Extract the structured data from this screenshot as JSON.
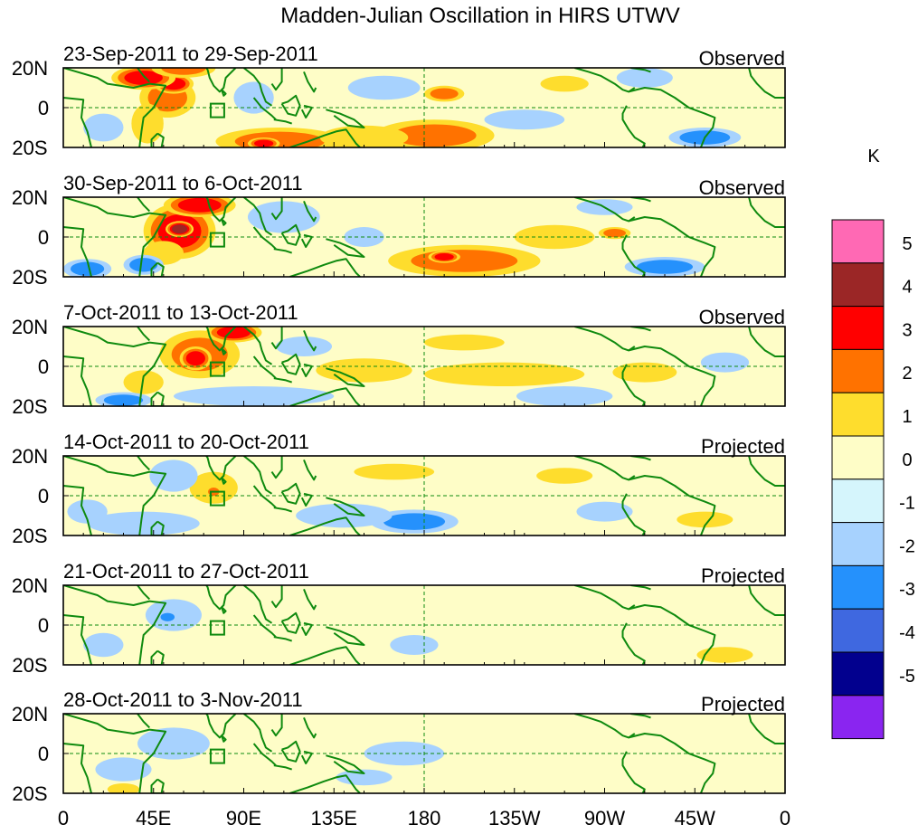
{
  "chart_data": {
    "type": "heatmap",
    "title": "Madden-Julian Oscillation in HIRS UTWV",
    "units": "K",
    "xlabel": "",
    "ylabel": "",
    "x_ticks": [
      "0",
      "45E",
      "90E",
      "135E",
      "180",
      "135W",
      "90W",
      "45W",
      "0"
    ],
    "x_range_deg": [
      0,
      360
    ],
    "y_ticks": [
      "20N",
      "0",
      "20S"
    ],
    "y_range_deg": [
      -20,
      20
    ],
    "colorbar": {
      "labels": [
        "5",
        "4",
        "3",
        "2",
        "1",
        "0",
        "-1",
        "-2",
        "-3",
        "-4",
        "-5"
      ],
      "colors": [
        "#ff69b4",
        "#9b2626",
        "#ff0000",
        "#ff7200",
        "#fedd2d",
        "#fefdc7",
        "#d5f5fc",
        "#a7d2fe",
        "#2591fc",
        "#3f68e0",
        "#02008e",
        "#8a25f0"
      ]
    },
    "panels": [
      {
        "period": "23-Sep-2011 to 29-Sep-2011",
        "status": "Observed",
        "blobs": [
          {
            "lon": 52,
            "lat": 5,
            "rx": 14,
            "ry": 10,
            "v": 2.6
          },
          {
            "lon": 55,
            "lat": 12,
            "rx": 10,
            "ry": 5,
            "v": 3.2
          },
          {
            "lon": 40,
            "lat": 15,
            "rx": 16,
            "ry": 6,
            "v": 3.0
          },
          {
            "lon": 60,
            "lat": 20,
            "rx": 16,
            "ry": 5,
            "v": 2.2
          },
          {
            "lon": 42,
            "lat": -8,
            "rx": 8,
            "ry": 10,
            "v": 1.4
          },
          {
            "lon": 108,
            "lat": -17,
            "rx": 32,
            "ry": 7,
            "v": 2.4
          },
          {
            "lon": 100,
            "lat": -18,
            "rx": 8,
            "ry": 3,
            "v": 3.3
          },
          {
            "lon": 185,
            "lat": -14,
            "rx": 30,
            "ry": 8,
            "v": 2.2
          },
          {
            "lon": 150,
            "lat": -15,
            "rx": 22,
            "ry": 6,
            "v": 1.6
          },
          {
            "lon": 190,
            "lat": 7,
            "rx": 10,
            "ry": 4,
            "v": 2.0
          },
          {
            "lon": 250,
            "lat": 12,
            "rx": 12,
            "ry": 4,
            "v": 1.4
          },
          {
            "lon": 320,
            "lat": -15,
            "rx": 18,
            "ry": 5,
            "v": -2.6
          },
          {
            "lon": 20,
            "lat": -10,
            "rx": 10,
            "ry": 7,
            "v": -1.5
          },
          {
            "lon": 95,
            "lat": 5,
            "rx": 10,
            "ry": 8,
            "v": -1.3
          },
          {
            "lon": 160,
            "lat": 10,
            "rx": 18,
            "ry": 6,
            "v": -1.2
          },
          {
            "lon": 230,
            "lat": -6,
            "rx": 20,
            "ry": 5,
            "v": -1.2
          },
          {
            "lon": 290,
            "lat": 15,
            "rx": 14,
            "ry": 5,
            "v": -1.1
          }
        ]
      },
      {
        "period": "30-Sep-2011 to 6-Oct-2011",
        "status": "Observed",
        "blobs": [
          {
            "lon": 58,
            "lat": 3,
            "rx": 18,
            "ry": 14,
            "v": 3.2
          },
          {
            "lon": 58,
            "lat": 4,
            "rx": 7,
            "ry": 4,
            "v": 4.3
          },
          {
            "lon": 68,
            "lat": 16,
            "rx": 18,
            "ry": 6,
            "v": 3.4
          },
          {
            "lon": 50,
            "lat": -8,
            "rx": 10,
            "ry": 6,
            "v": 1.8
          },
          {
            "lon": 200,
            "lat": -12,
            "rx": 38,
            "ry": 8,
            "v": 2.4
          },
          {
            "lon": 190,
            "lat": -10,
            "rx": 8,
            "ry": 3,
            "v": 3.1
          },
          {
            "lon": 245,
            "lat": 0,
            "rx": 20,
            "ry": 6,
            "v": 1.5
          },
          {
            "lon": 275,
            "lat": 2,
            "rx": 8,
            "ry": 3,
            "v": 2.5
          },
          {
            "lon": 12,
            "lat": -16,
            "rx": 12,
            "ry": 5,
            "v": -2.4
          },
          {
            "lon": 40,
            "lat": -14,
            "rx": 10,
            "ry": 5,
            "v": -2.2
          },
          {
            "lon": 110,
            "lat": 10,
            "rx": 18,
            "ry": 8,
            "v": -1.3
          },
          {
            "lon": 150,
            "lat": 0,
            "rx": 10,
            "ry": 5,
            "v": -1.4
          },
          {
            "lon": 300,
            "lat": -15,
            "rx": 20,
            "ry": 5,
            "v": -2.2
          },
          {
            "lon": 270,
            "lat": 15,
            "rx": 14,
            "ry": 4,
            "v": -1.2
          }
        ]
      },
      {
        "period": "7-Oct-2011 to 13-Oct-2011",
        "status": "Observed",
        "blobs": [
          {
            "lon": 68,
            "lat": 6,
            "rx": 20,
            "ry": 12,
            "v": 2.9
          },
          {
            "lon": 66,
            "lat": 4,
            "rx": 8,
            "ry": 6,
            "v": 3.6
          },
          {
            "lon": 85,
            "lat": 17,
            "rx": 14,
            "ry": 5,
            "v": 3.2
          },
          {
            "lon": 40,
            "lat": -8,
            "rx": 10,
            "ry": 6,
            "v": 1.5
          },
          {
            "lon": 150,
            "lat": -2,
            "rx": 24,
            "ry": 6,
            "v": 1.3
          },
          {
            "lon": 220,
            "lat": -4,
            "rx": 40,
            "ry": 6,
            "v": 1.5
          },
          {
            "lon": 290,
            "lat": -3,
            "rx": 16,
            "ry": 5,
            "v": 1.6
          },
          {
            "lon": 200,
            "lat": 12,
            "rx": 20,
            "ry": 4,
            "v": 1.3
          },
          {
            "lon": 30,
            "lat": -17,
            "rx": 14,
            "ry": 4,
            "v": -2.4
          },
          {
            "lon": 95,
            "lat": -15,
            "rx": 40,
            "ry": 5,
            "v": -1.5
          },
          {
            "lon": 250,
            "lat": -15,
            "rx": 24,
            "ry": 5,
            "v": -1.4
          },
          {
            "lon": 120,
            "lat": 10,
            "rx": 14,
            "ry": 5,
            "v": -1.3
          },
          {
            "lon": 330,
            "lat": 2,
            "rx": 12,
            "ry": 5,
            "v": -1.2
          }
        ]
      },
      {
        "period": "14-Oct-2011 to 20-Oct-2011",
        "status": "Projected",
        "blobs": [
          {
            "lon": 75,
            "lat": 4,
            "rx": 12,
            "ry": 8,
            "v": 1.8
          },
          {
            "lon": 75,
            "lat": 2,
            "rx": 4,
            "ry": 3,
            "v": 2.4
          },
          {
            "lon": 40,
            "lat": -14,
            "rx": 28,
            "ry": 6,
            "v": -1.8
          },
          {
            "lon": 175,
            "lat": -13,
            "rx": 22,
            "ry": 6,
            "v": -2.3
          },
          {
            "lon": 140,
            "lat": -10,
            "rx": 24,
            "ry": 6,
            "v": -1.4
          },
          {
            "lon": 55,
            "lat": 10,
            "rx": 12,
            "ry": 8,
            "v": -1.6
          },
          {
            "lon": 12,
            "lat": -8,
            "rx": 10,
            "ry": 6,
            "v": -1.3
          },
          {
            "lon": 165,
            "lat": 12,
            "rx": 20,
            "ry": 4,
            "v": 1.3
          },
          {
            "lon": 250,
            "lat": 10,
            "rx": 14,
            "ry": 4,
            "v": 1.2
          },
          {
            "lon": 320,
            "lat": -12,
            "rx": 14,
            "ry": 4,
            "v": 1.3
          },
          {
            "lon": 270,
            "lat": -8,
            "rx": 14,
            "ry": 5,
            "v": -1.2
          }
        ]
      },
      {
        "period": "21-Oct-2011 to 27-Oct-2011",
        "status": "Projected",
        "blobs": [
          {
            "lon": 55,
            "lat": 5,
            "rx": 14,
            "ry": 8,
            "v": -1.9
          },
          {
            "lon": 52,
            "lat": 4,
            "rx": 5,
            "ry": 3,
            "v": -2.6
          },
          {
            "lon": 175,
            "lat": -10,
            "rx": 12,
            "ry": 5,
            "v": -1.8
          },
          {
            "lon": 20,
            "lat": -10,
            "rx": 10,
            "ry": 6,
            "v": -1.2
          },
          {
            "lon": 140,
            "lat": 5,
            "rx": 30,
            "ry": 6,
            "v": 0.8
          },
          {
            "lon": 220,
            "lat": -5,
            "rx": 30,
            "ry": 6,
            "v": 0.9
          },
          {
            "lon": 300,
            "lat": 5,
            "rx": 20,
            "ry": 5,
            "v": 0.8
          },
          {
            "lon": 330,
            "lat": -15,
            "rx": 14,
            "ry": 4,
            "v": 1.2
          }
        ]
      },
      {
        "period": "28-Oct-2011 to 3-Nov-2011",
        "status": "Projected",
        "blobs": [
          {
            "lon": 55,
            "lat": 5,
            "rx": 18,
            "ry": 8,
            "v": -1.4
          },
          {
            "lon": 30,
            "lat": -8,
            "rx": 14,
            "ry": 6,
            "v": -1.2
          },
          {
            "lon": 170,
            "lat": 0,
            "rx": 20,
            "ry": 6,
            "v": -1.1
          },
          {
            "lon": 150,
            "lat": -12,
            "rx": 14,
            "ry": 4,
            "v": -1.2
          },
          {
            "lon": 250,
            "lat": 0,
            "rx": 60,
            "ry": 10,
            "v": 0.7
          },
          {
            "lon": 110,
            "lat": 12,
            "rx": 20,
            "ry": 5,
            "v": 0.8
          },
          {
            "lon": 30,
            "lat": -18,
            "rx": 8,
            "ry": 3,
            "v": 1.3
          }
        ]
      }
    ]
  }
}
